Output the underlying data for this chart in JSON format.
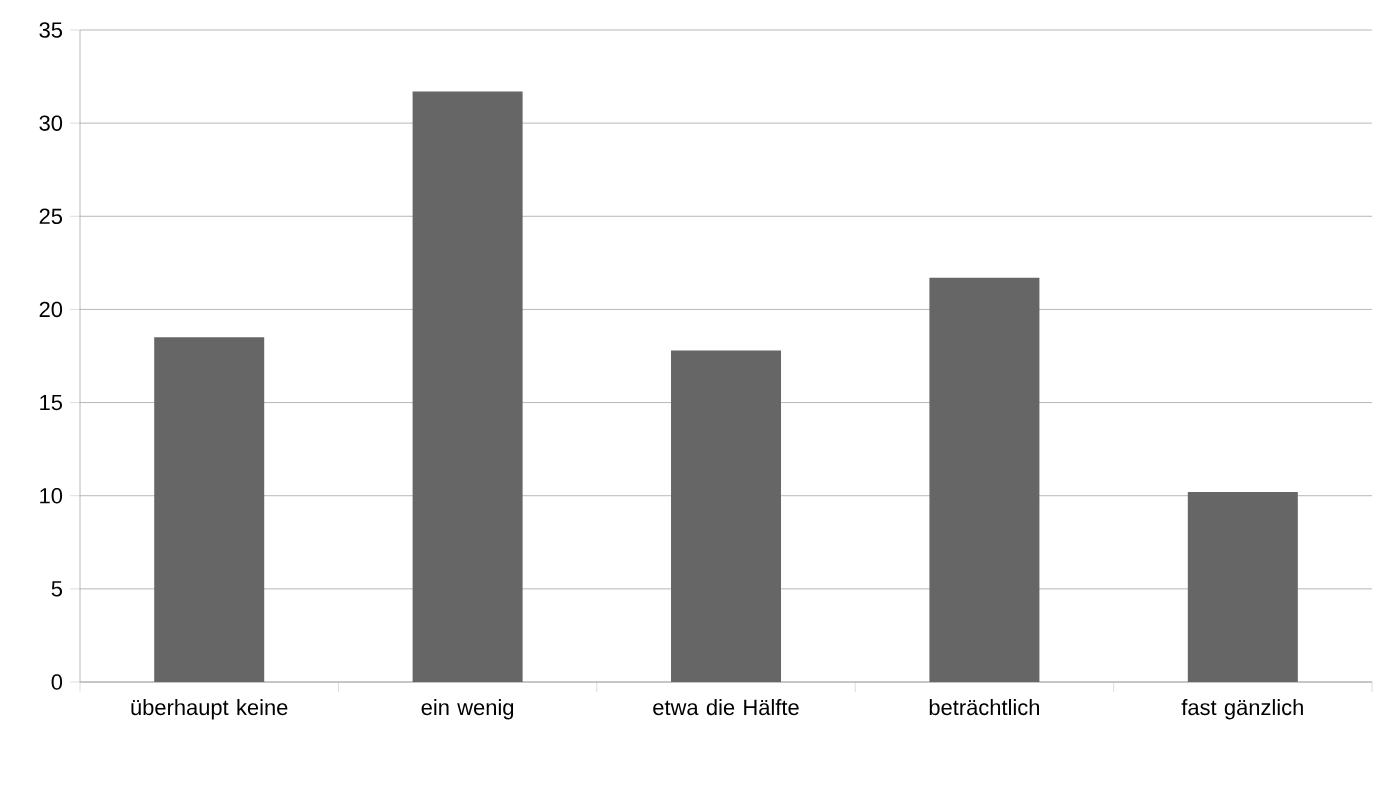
{
  "chart_data": {
    "type": "bar",
    "categories": [
      "überhaupt keine",
      "ein wenig",
      "etwa die Hälfte",
      "beträchtlich",
      "fast gänzlich"
    ],
    "values": [
      18.5,
      31.7,
      17.8,
      21.7,
      10.2
    ],
    "color": "#666666",
    "ylim": [
      0,
      35
    ],
    "yticks": [
      0,
      5,
      10,
      15,
      20,
      25,
      30,
      35
    ],
    "grid": "y"
  }
}
